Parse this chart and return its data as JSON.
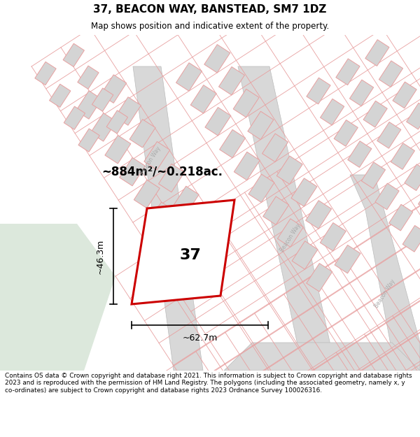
{
  "title": "37, BEACON WAY, BANSTEAD, SM7 1DZ",
  "subtitle": "Map shows position and indicative extent of the property.",
  "footnote": "Contains OS data © Crown copyright and database right 2021. This information is subject to Crown copyright and database rights 2023 and is reproduced with the permission of HM Land Registry. The polygons (including the associated geometry, namely x, y co-ordinates) are subject to Crown copyright and database rights 2023 Ordnance Survey 100026316.",
  "area_label": "~884m²/~0.218ac.",
  "number_label": "37",
  "width_label": "~62.7m",
  "height_label": "~46.3m",
  "map_bg": "#f7f7f5",
  "left_bg": "#dce8dc",
  "road_fill": "#d8d8d8",
  "building_fill": "#d4d4d4",
  "plot_line": "#e8a0a0",
  "road_line": "#bbbbbb",
  "highlight_edge": "#cc0000",
  "highlight_fill": "#ffffff",
  "road_label_color": "#aaaaaa",
  "title_size": 11,
  "subtitle_size": 8.5,
  "footnote_size": 6.4,
  "area_size": 12,
  "label_size": 9,
  "number_size": 16
}
